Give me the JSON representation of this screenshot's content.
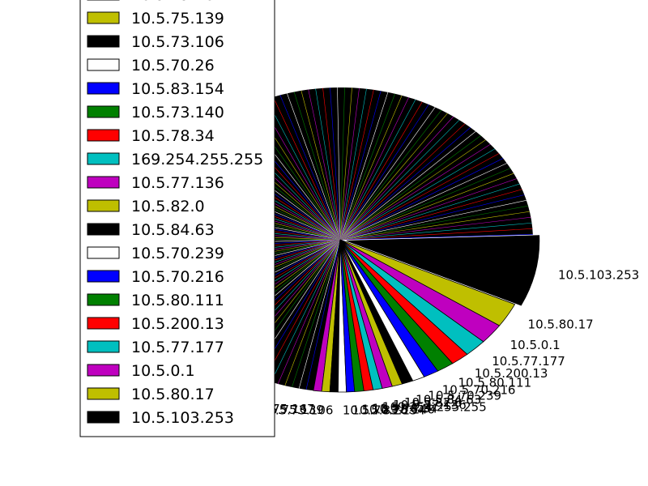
{
  "chart_data": {
    "type": "pie",
    "title": "",
    "labels": [
      "10.5.75.167",
      "10.5.75.139",
      "10.5.73.106",
      "10.5.70.26",
      "10.5.83.154",
      "10.5.73.140",
      "10.5.78.34",
      "169.254.255.255",
      "10.5.77.136",
      "10.5.82.0",
      "10.5.84.63",
      "10.5.70.239",
      "10.5.70.216",
      "10.5.80.111",
      "10.5.200.13",
      "10.5.77.177",
      "10.5.0.1",
      "10.5.80.17",
      "10.5.103.253"
    ],
    "values": [
      0.8,
      0.8,
      0.8,
      0.8,
      0.8,
      0.9,
      0.9,
      0.9,
      1.0,
      1.0,
      1.1,
      1.2,
      1.5,
      1.7,
      1.8,
      2.2,
      2.5,
      3.0,
      8.8
    ],
    "colors": [
      "#bf00bf",
      "#bfbf00",
      "#000000",
      "#ffffff",
      "#0000ff",
      "#008000",
      "#ff0000",
      "#00bfbf",
      "#bf00bf",
      "#bfbf00",
      "#000000",
      "#ffffff",
      "#0000ff",
      "#008000",
      "#ff0000",
      "#00bfbf",
      "#bf00bf",
      "#bfbf00",
      "#000000"
    ],
    "exploded_index": 18,
    "legend_position": "upper-left"
  }
}
